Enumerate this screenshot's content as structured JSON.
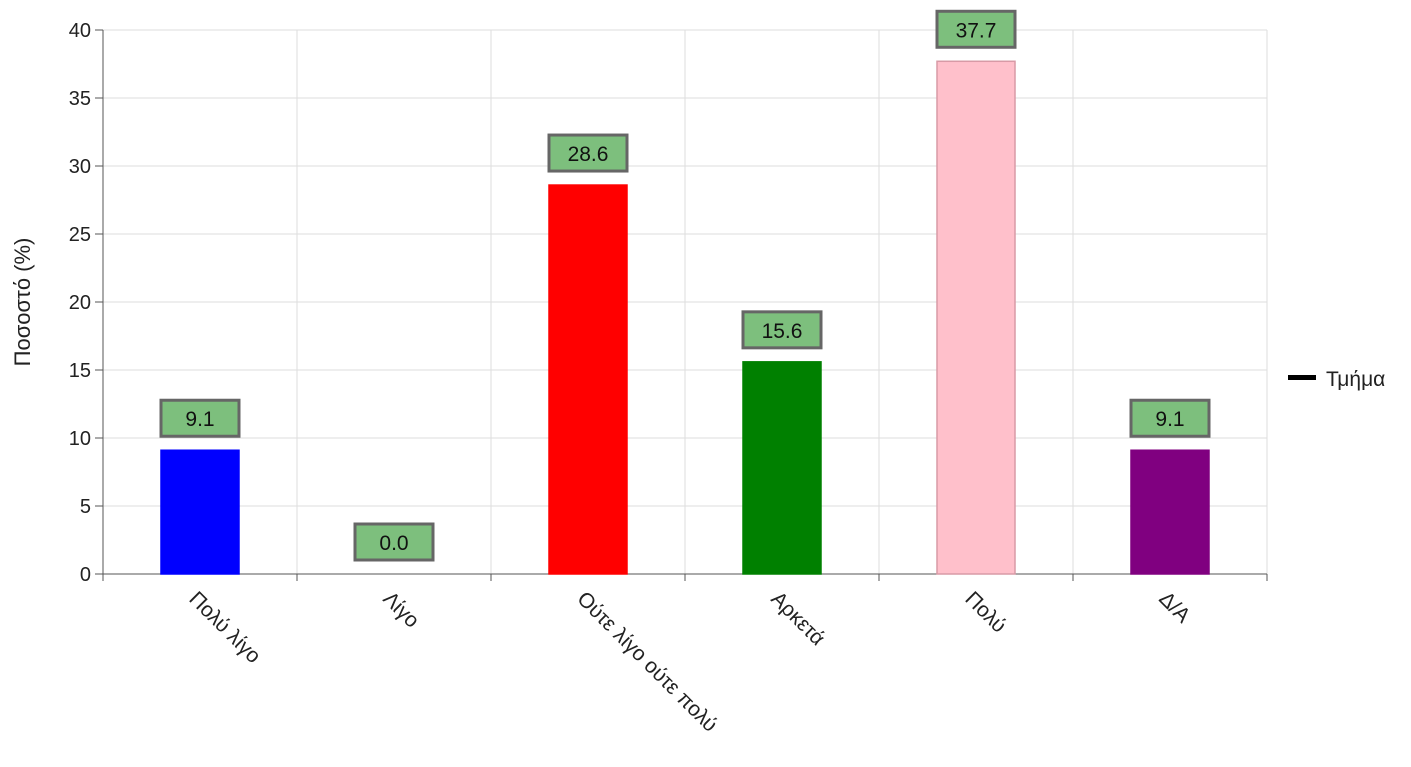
{
  "chart_data": {
    "type": "bar",
    "categories": [
      "Πολύ λίγο",
      "Λίγο",
      "Ούτε λίγο ούτε πολύ",
      "Αρκετά",
      "Πολύ",
      "Δ/Α"
    ],
    "series": [
      {
        "name": "Τμήμα",
        "values": [
          9.1,
          0.0,
          28.6,
          15.6,
          37.7,
          9.1
        ],
        "colors": [
          "#0000ff",
          "#0000ff",
          "#ff0000",
          "#008000",
          "#ffc0cb",
          "#800080"
        ]
      }
    ],
    "data_labels": [
      "9.1",
      "0.0",
      "28.6",
      "15.6",
      "37.7",
      "9.1"
    ],
    "title": "",
    "xlabel": "",
    "ylabel": "Ποσοστό (%)",
    "ylim": [
      0,
      40
    ],
    "yticks": [
      0,
      5,
      10,
      15,
      20,
      25,
      30,
      35,
      40
    ],
    "grid": true,
    "legend": {
      "placement": "right",
      "entries": [
        "Τμήμα"
      ],
      "swatch_color": "#000000"
    },
    "label_box_fill": "#7dbf7d",
    "label_box_border": "#666666"
  }
}
